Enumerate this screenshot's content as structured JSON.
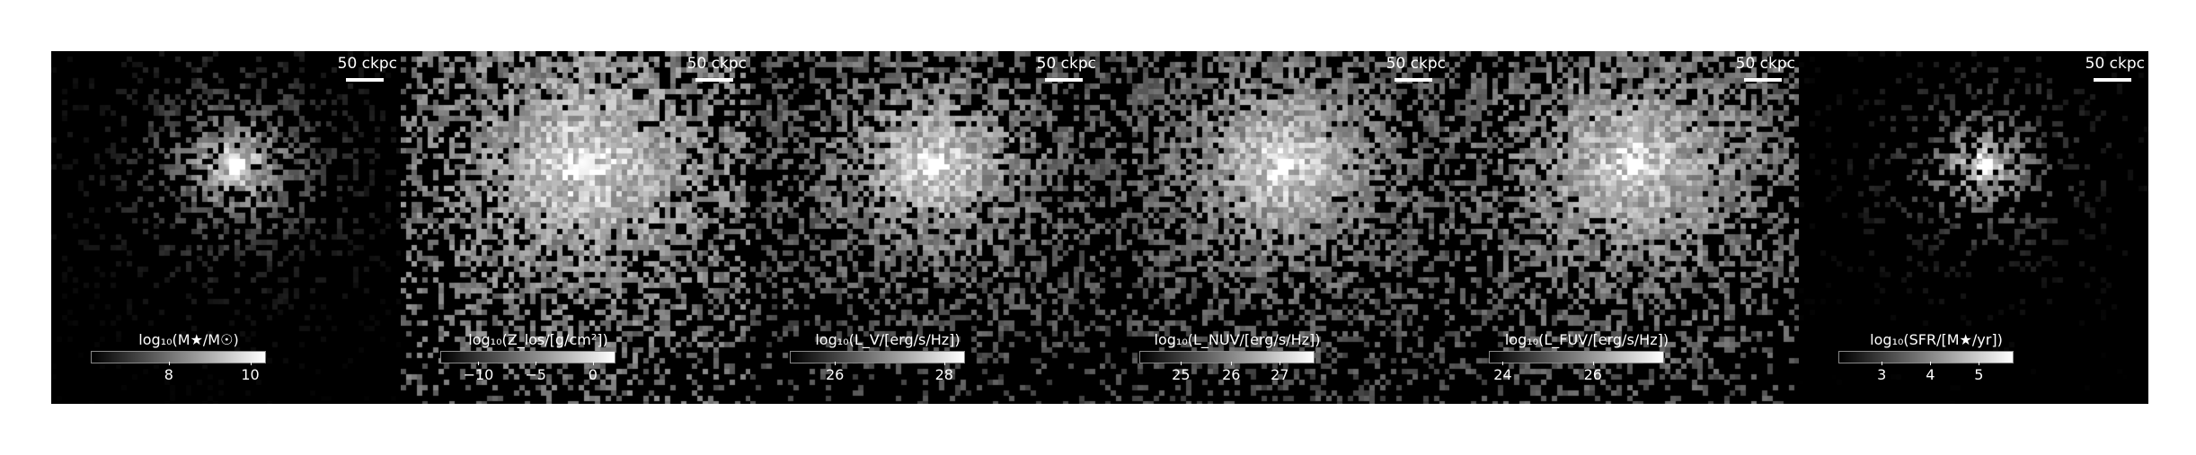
{
  "scale_bar_label": "50 ckpc",
  "panels": [
    {
      "id": "mstar",
      "cbar_title": "log₁₀(M★/M☉)",
      "ticks": [
        "8",
        "10"
      ],
      "tick_fracs": [
        0.45,
        0.92
      ],
      "map": {
        "spread": 0.55,
        "fill": 0.12,
        "peak": 1.0,
        "floor": 0.0
      }
    },
    {
      "id": "metal",
      "cbar_title": "log₁₀(Z_los/[g/cm²])",
      "ticks": [
        "−10",
        "−5",
        "0"
      ],
      "tick_fracs": [
        0.22,
        0.55,
        0.88
      ],
      "map": {
        "spread": 1.0,
        "fill": 0.55,
        "peak": 0.95,
        "floor": 0.45
      }
    },
    {
      "id": "lv",
      "cbar_title": "log₁₀(L_V/[erg/s/Hz])",
      "ticks": [
        "26",
        "28"
      ],
      "tick_fracs": [
        0.26,
        0.89
      ],
      "map": {
        "spread": 0.9,
        "fill": 0.38,
        "peak": 1.0,
        "floor": 0.3
      }
    },
    {
      "id": "lnuv",
      "cbar_title": "log₁₀(L_NUV/[erg/s/Hz])",
      "ticks": [
        "25",
        "26",
        "27"
      ],
      "tick_fracs": [
        0.24,
        0.53,
        0.81
      ],
      "map": {
        "spread": 1.0,
        "fill": 0.45,
        "peak": 1.0,
        "floor": 0.3
      }
    },
    {
      "id": "lfuv",
      "cbar_title": "log₁₀(L_FUV/[erg/s/Hz])",
      "ticks": [
        "24",
        "26"
      ],
      "tick_fracs": [
        0.08,
        0.6
      ],
      "map": {
        "spread": 1.0,
        "fill": 0.5,
        "peak": 1.0,
        "floor": 0.35
      }
    },
    {
      "id": "sfr",
      "cbar_title": "log₁₀(SFR/[M★/yr])",
      "ticks": [
        "3",
        "4",
        "5"
      ],
      "tick_fracs": [
        0.25,
        0.53,
        0.81
      ],
      "map": {
        "spread": 0.4,
        "fill": 0.08,
        "peak": 1.0,
        "floor": 0.0
      }
    }
  ]
}
